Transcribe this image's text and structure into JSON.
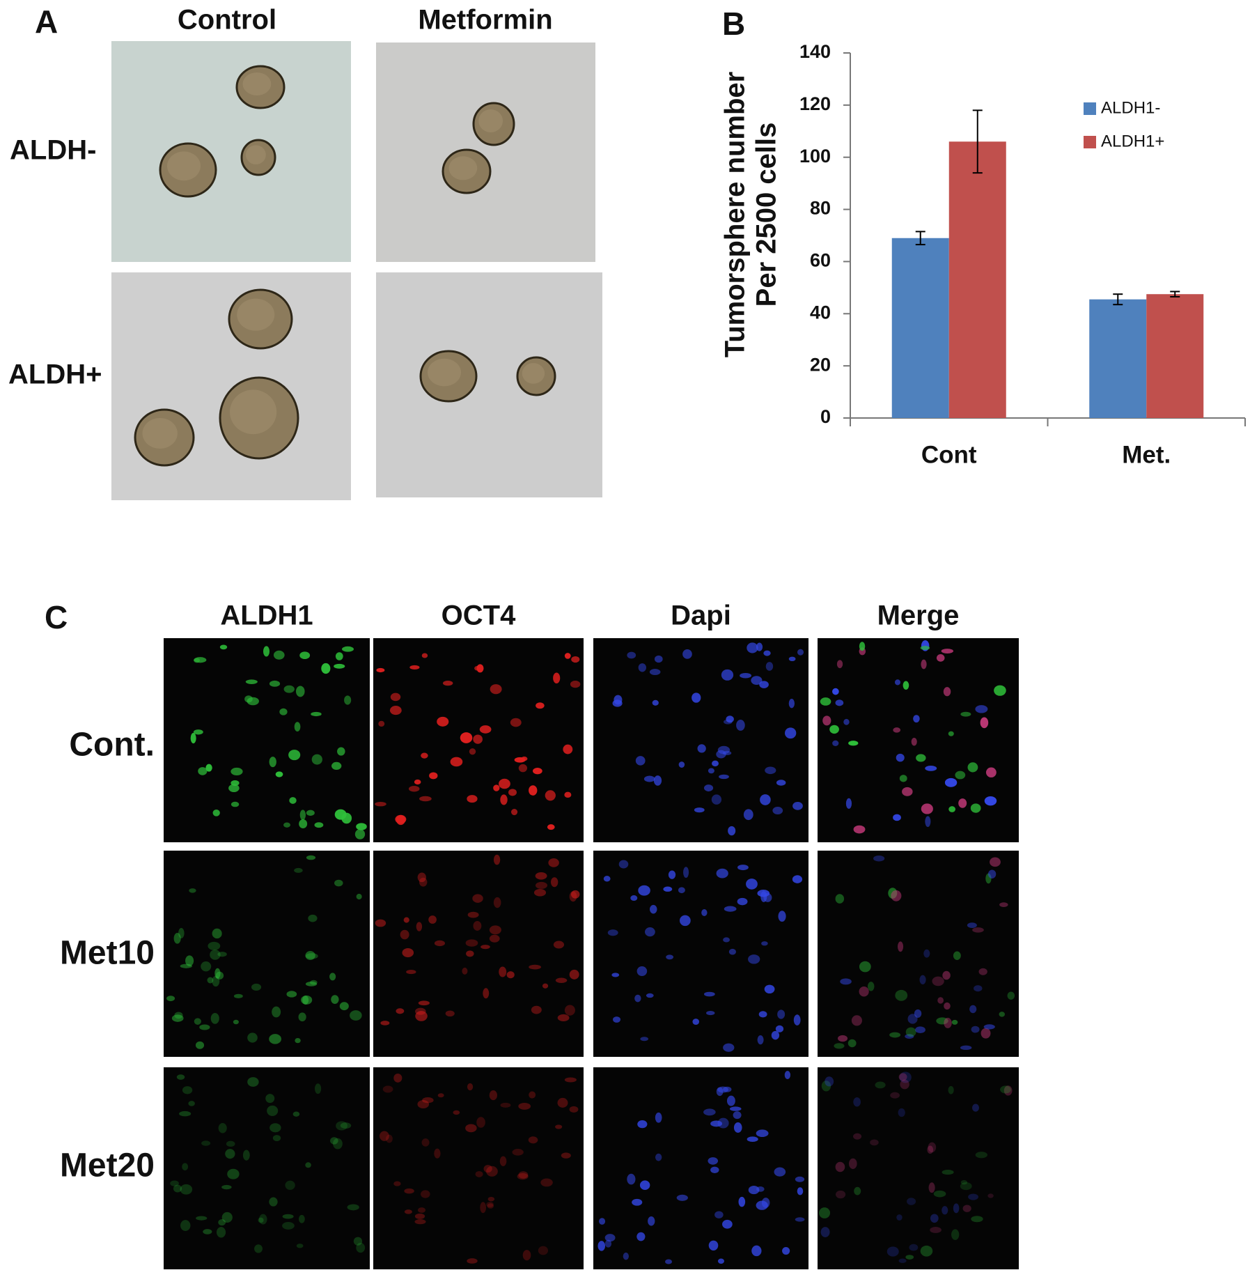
{
  "panel_a": {
    "label": "A",
    "columns": [
      "Control",
      "Metformin"
    ],
    "rows": [
      "ALDH-",
      "ALDH+"
    ]
  },
  "chart_data": {
    "type": "bar",
    "label": "B",
    "ylabel": [
      "Tumorsphere number",
      "Per 2500 cells"
    ],
    "categories": [
      "Cont",
      "Met."
    ],
    "series": [
      {
        "name": "ALDH1-",
        "color": "#4f81bd",
        "values": [
          69,
          45.5
        ],
        "errors": [
          2.5,
          2
        ]
      },
      {
        "name": "ALDH1+",
        "color": "#c0504d",
        "values": [
          106,
          47.5
        ],
        "errors": [
          12,
          1
        ]
      }
    ],
    "ylim": [
      0,
      140
    ],
    "yticks": [
      0,
      20,
      40,
      60,
      80,
      100,
      120,
      140
    ],
    "grid": false,
    "legend": "upper right"
  },
  "panel_c": {
    "label": "C",
    "columns": [
      "ALDH1",
      "OCT4",
      "Dapi",
      "Merge"
    ],
    "rows": [
      "Cont.",
      "Met10",
      "Met20"
    ]
  }
}
